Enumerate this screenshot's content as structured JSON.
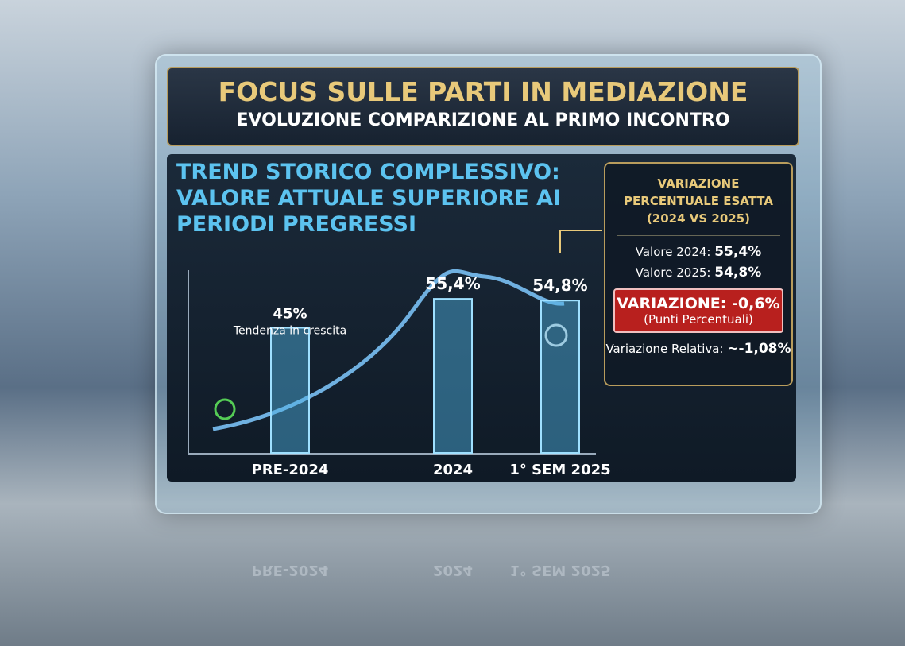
{
  "header": {
    "title": "FOCUS SULLE PARTI IN MEDIAZIONE",
    "subtitle": "EVOLUZIONE COMPARIZIONE AL PRIMO INCONTRO"
  },
  "chart_data": {
    "type": "bar",
    "title": "TREND STORICO COMPLESSIVO: VALORE ATTUALE SUPERIORE AI PERIODI PREGRESSI",
    "categories": [
      "PRE-2024",
      "2024",
      "1° SEM 2025"
    ],
    "values": [
      45,
      55.4,
      54.8
    ],
    "value_labels": [
      "45%",
      "55,4%",
      "54,8%"
    ],
    "annotation": "Tendenza in crescita",
    "color": "#4fb6e6"
  },
  "sidebox": {
    "title": "VARIAZIONE PERCENTUALE ESATTA (2024 VS 2025)",
    "rows": [
      [
        "Valore 2024:",
        "55,4%"
      ],
      [
        "Valore 2025:",
        "54,8%"
      ]
    ],
    "highlight": {
      "label": "VARIAZIONE:",
      "value": "-0,6%",
      "note": "(Punti Percentuali)"
    },
    "relative": [
      "Variazione Relativa:",
      "~-1,08%"
    ]
  }
}
